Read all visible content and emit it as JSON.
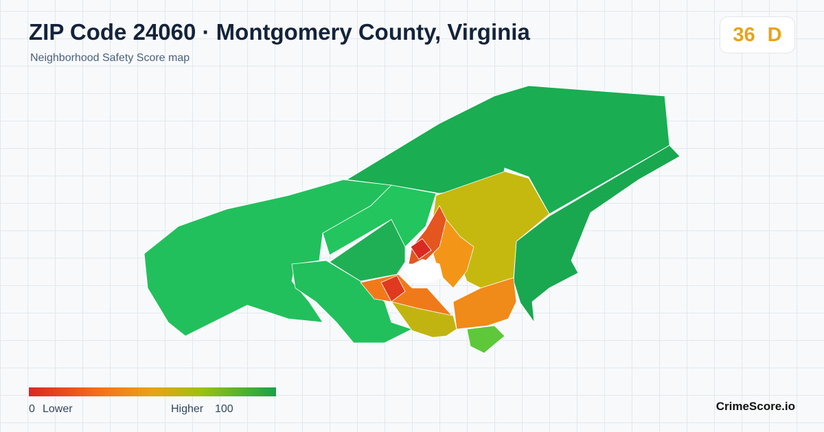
{
  "header": {
    "title": "ZIP Code 24060 · Montgomery County, Virginia",
    "subtitle": "Neighborhood Safety Score map"
  },
  "score": {
    "value": "36",
    "grade": "D"
  },
  "legend": {
    "min": "0",
    "min_label": "Lower",
    "max_label": "Higher",
    "max": "100"
  },
  "brand": "CrimeScore.io"
}
